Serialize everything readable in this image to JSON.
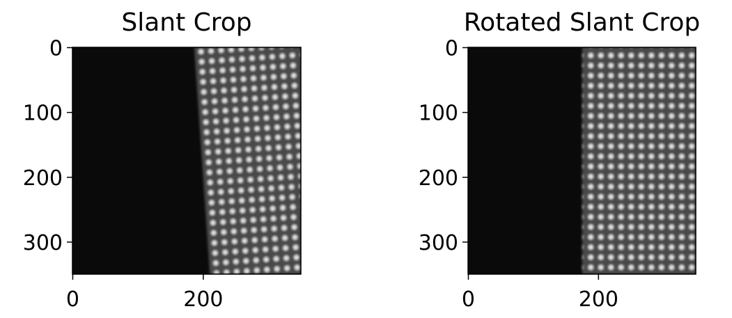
{
  "chart_data": [
    {
      "type": "image",
      "title": "Slant Crop",
      "xlim": [
        -0.5,
        349.5
      ],
      "ylim": [
        349.5,
        -0.5
      ],
      "xticks": [
        0,
        200
      ],
      "yticks": [
        0,
        100,
        200,
        300
      ]
    },
    {
      "type": "image",
      "title": "Rotated Slant Crop",
      "xlim": [
        -0.5,
        349.5
      ],
      "ylim": [
        349.5,
        -0.5
      ],
      "xticks": [
        0,
        200
      ],
      "yticks": [
        0,
        100,
        200,
        300
      ]
    }
  ]
}
